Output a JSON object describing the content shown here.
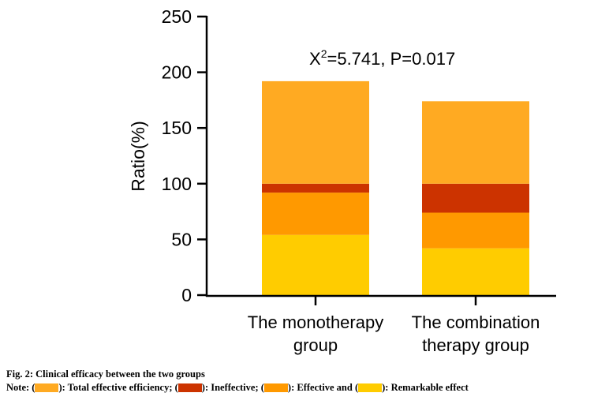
{
  "chart_data": {
    "type": "bar",
    "stacked": true,
    "ylabel": "Ratio(%)",
    "xlabel": "",
    "ylim": [
      0,
      250
    ],
    "yticks": [
      "0",
      "50",
      "100",
      "150",
      "200",
      "250"
    ],
    "categories": [
      [
        "The monotherapy",
        "group"
      ],
      [
        "The combination",
        "therapy group"
      ]
    ],
    "series": [
      {
        "name": "Remarkable effect",
        "color": "#FFCC00",
        "values": [
          54,
          42
        ]
      },
      {
        "name": "Effective",
        "color": "#FF9900",
        "values": [
          38,
          32
        ]
      },
      {
        "name": "Ineffective",
        "color": "#CC3300",
        "values": [
          8,
          26
        ]
      },
      {
        "name": "Total effective efficiency",
        "color": "#FFAA22",
        "values": [
          92,
          74
        ]
      }
    ],
    "annotation": {
      "prefix": "X",
      "superscript": "2",
      "text": "=5.741, P=0.017"
    }
  },
  "caption": {
    "title": "Fig. 2: Clinical efficacy between the two groups",
    "note_prefix": "Note: (",
    "items": [
      {
        "color": "#FFAA22",
        "label": "): Total effective efficiency; ("
      },
      {
        "color": "#CC3300",
        "label": "): Ineffective; ("
      },
      {
        "color": "#FF9900",
        "label": "): Effective and ("
      },
      {
        "color": "#FFCC00",
        "label": "): Remarkable effect"
      }
    ]
  }
}
